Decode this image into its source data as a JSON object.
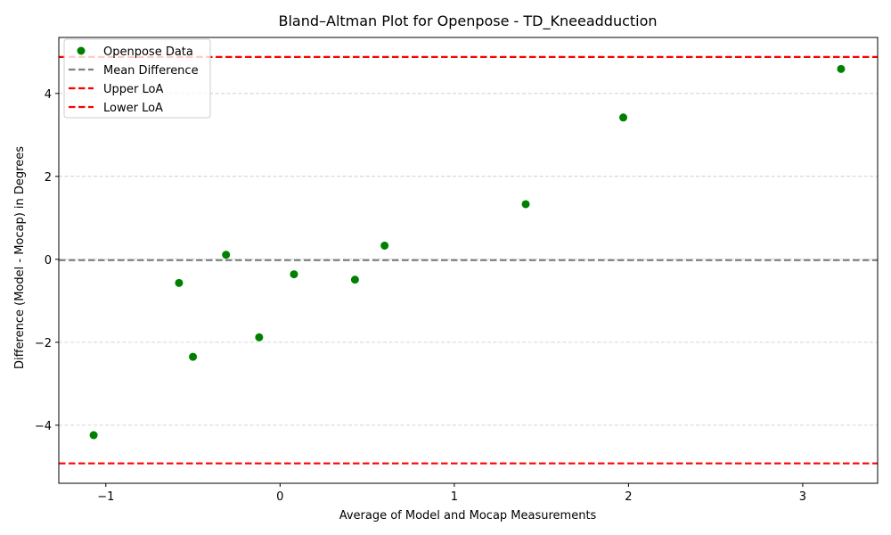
{
  "chart_data": {
    "type": "scatter",
    "title": "Bland–Altman Plot for Openpose - TD_Kneeadduction",
    "xlabel": "Average of Model and Mocap Measurements",
    "ylabel": "Difference (Model - Mocap) in Degrees",
    "xlim": [
      -1.27,
      3.43
    ],
    "ylim": [
      -5.4,
      5.35
    ],
    "xticks": [
      -1,
      0,
      1,
      2,
      3
    ],
    "xtick_labels": [
      "−1",
      "0",
      "1",
      "2",
      "3"
    ],
    "yticks": [
      -4,
      -2,
      0,
      2,
      4
    ],
    "ytick_labels": [
      "−4",
      "−2",
      "0",
      "2",
      "4"
    ],
    "grid": "y-axis dashed",
    "legend_position": "upper-left",
    "series": [
      {
        "name": "Openpose Data",
        "color": "#008000",
        "marker": "circle",
        "x": [
          -1.07,
          -0.58,
          -0.5,
          -0.31,
          -0.12,
          0.08,
          0.43,
          0.6,
          1.41,
          1.97,
          3.22
        ],
        "y": [
          -4.24,
          -0.57,
          -2.35,
          0.11,
          -1.88,
          -0.36,
          -0.49,
          0.33,
          1.33,
          3.42,
          4.59
        ]
      }
    ],
    "reference_lines": [
      {
        "name": "Mean Difference",
        "y": -0.02,
        "color": "#808080",
        "style": "dashed"
      },
      {
        "name": "Upper LoA",
        "y": 4.88,
        "color": "#ff0000",
        "style": "dashed"
      },
      {
        "name": "Lower LoA",
        "y": -4.92,
        "color": "#ff0000",
        "style": "dashed"
      }
    ]
  }
}
